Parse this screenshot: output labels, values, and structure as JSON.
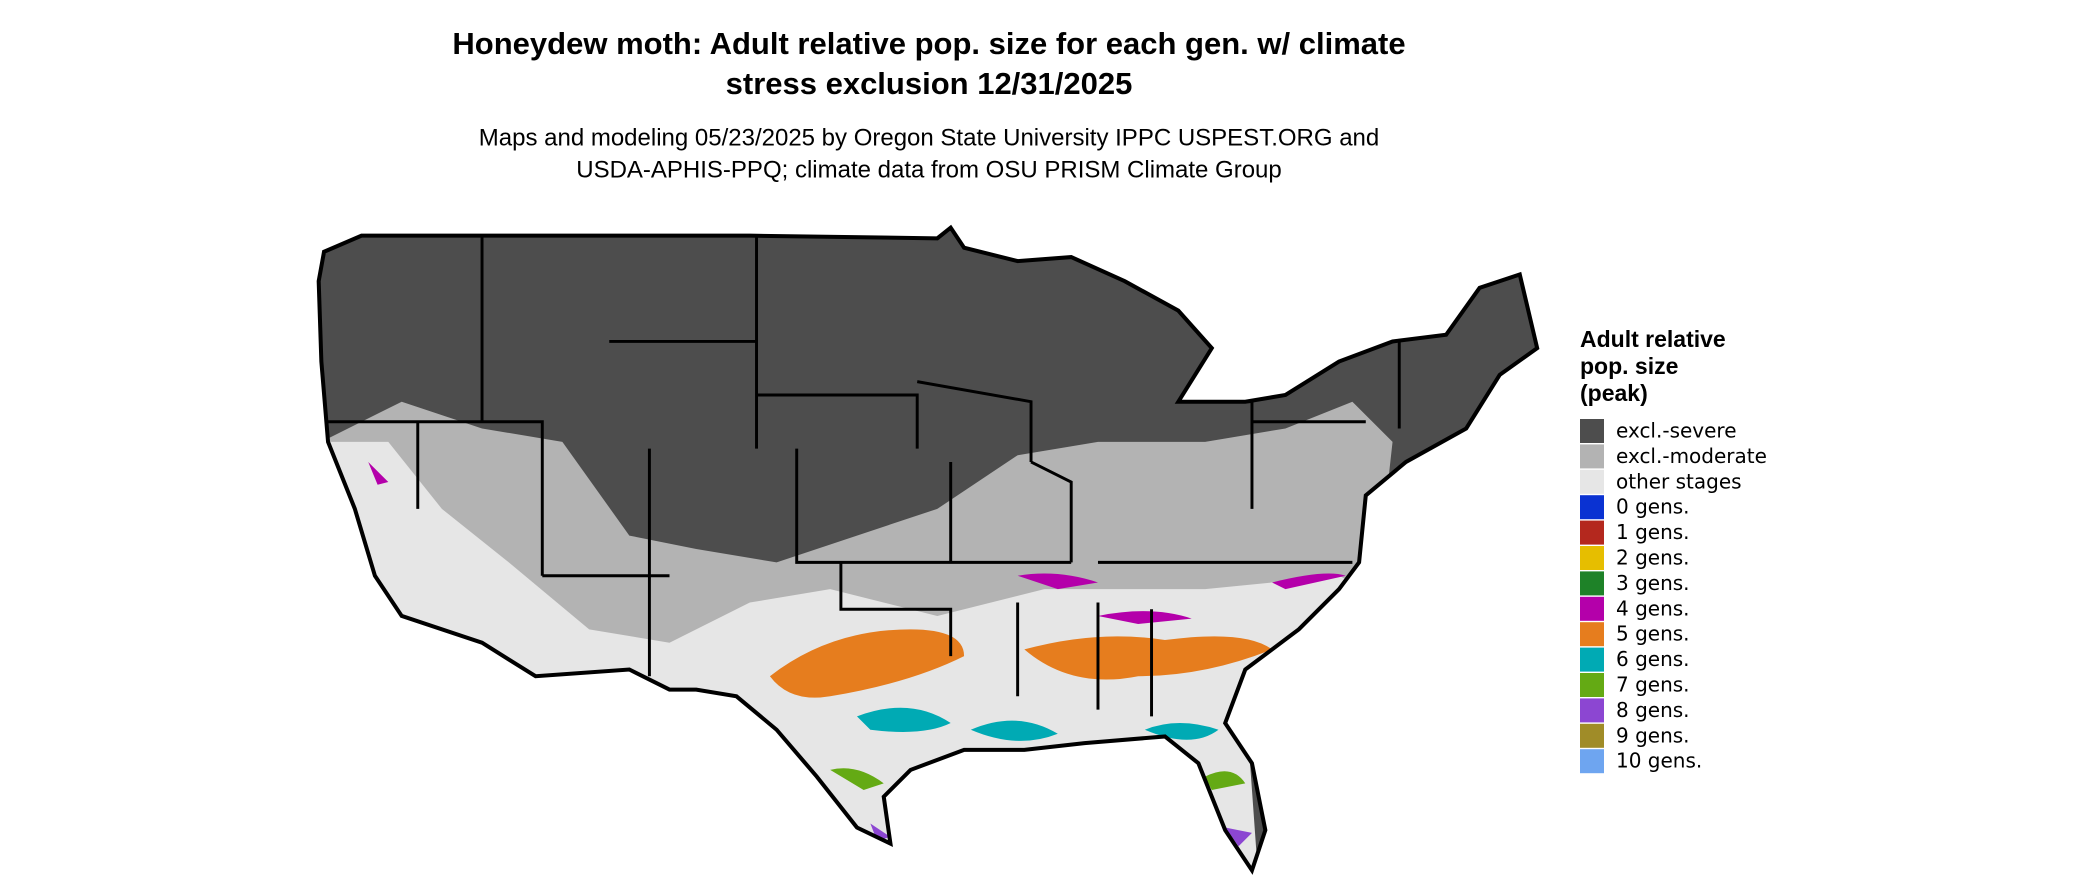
{
  "title_lines": [
    "Honeydew moth: Adult relative pop. size for each gen. w/ climate",
    "stress exclusion 12/31/2025"
  ],
  "subtitle_lines": [
    "Maps and modeling 05/23/2025 by Oregon State University IPPC USPEST.ORG and",
    "USDA-APHIS-PPQ; climate data from OSU PRISM Climate Group"
  ],
  "legend": {
    "title_lines": [
      "Adult relative",
      "pop. size",
      "(peak)"
    ],
    "items": [
      {
        "label": "excl.-severe",
        "color": "#4d4d4d"
      },
      {
        "label": "excl.-moderate",
        "color": "#b3b3b3"
      },
      {
        "label": "other stages",
        "color": "#e6e6e6"
      },
      {
        "label": "0 gens.",
        "color": "#0a32d2"
      },
      {
        "label": "1 gens.",
        "color": "#b4281e"
      },
      {
        "label": "2 gens.",
        "color": "#e6be00"
      },
      {
        "label": "3 gens.",
        "color": "#1e8228"
      },
      {
        "label": "4 gens.",
        "color": "#b400aa"
      },
      {
        "label": "5 gens.",
        "color": "#e67d1e"
      },
      {
        "label": "6 gens.",
        "color": "#00aab4"
      },
      {
        "label": "7 gens.",
        "color": "#64aa14"
      },
      {
        "label": "8 gens.",
        "color": "#8c46d2"
      },
      {
        "label": "9 gens.",
        "color": "#a08c28"
      },
      {
        "label": "10 gens.",
        "color": "#6ea5f0"
      }
    ]
  }
}
